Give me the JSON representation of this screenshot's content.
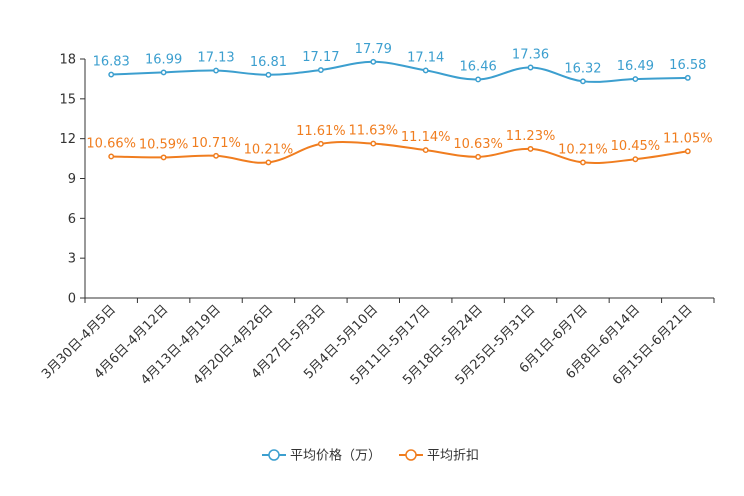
{
  "chart_data": {
    "type": "line",
    "title": "",
    "xlabel": "",
    "ylabel": "",
    "ylim": [
      0,
      18
    ],
    "yticks": [
      0,
      3,
      6,
      9,
      12,
      15,
      18
    ],
    "grid": false,
    "legend_position": "bottom-center",
    "categories": [
      "3月30日-4月5日",
      "4月6日-4月12日",
      "4月13日-4月19日",
      "4月20日-4月26日",
      "4月27日-5月3日",
      "5月4日-5月10日",
      "5月11日-5月17日",
      "5月18日-5月24日",
      "5月25日-5月31日",
      "6月1日-6月7日",
      "6月8日-6月14日",
      "6月15日-6月21日"
    ],
    "series": [
      {
        "name": "平均价格（万）",
        "color": "#3c9fcf",
        "values": [
          16.83,
          16.99,
          17.13,
          16.81,
          17.17,
          17.79,
          17.14,
          16.46,
          17.36,
          16.32,
          16.49,
          16.58
        ],
        "labels": [
          "16.83",
          "16.99",
          "17.13",
          "16.81",
          "17.17",
          "17.79",
          "17.14",
          "16.46",
          "17.36",
          "16.32",
          "16.49",
          "16.58"
        ]
      },
      {
        "name": "平均折扣",
        "color": "#f07d1f",
        "values": [
          10.66,
          10.59,
          10.71,
          10.21,
          11.61,
          11.63,
          11.14,
          10.63,
          11.23,
          10.21,
          10.45,
          11.05
        ],
        "labels": [
          "10.66%",
          "10.59%",
          "10.71%",
          "10.21%",
          "11.61%",
          "11.63%",
          "11.14%",
          "10.63%",
          "11.23%",
          "10.21%",
          "10.45%",
          "11.05%"
        ]
      }
    ]
  }
}
